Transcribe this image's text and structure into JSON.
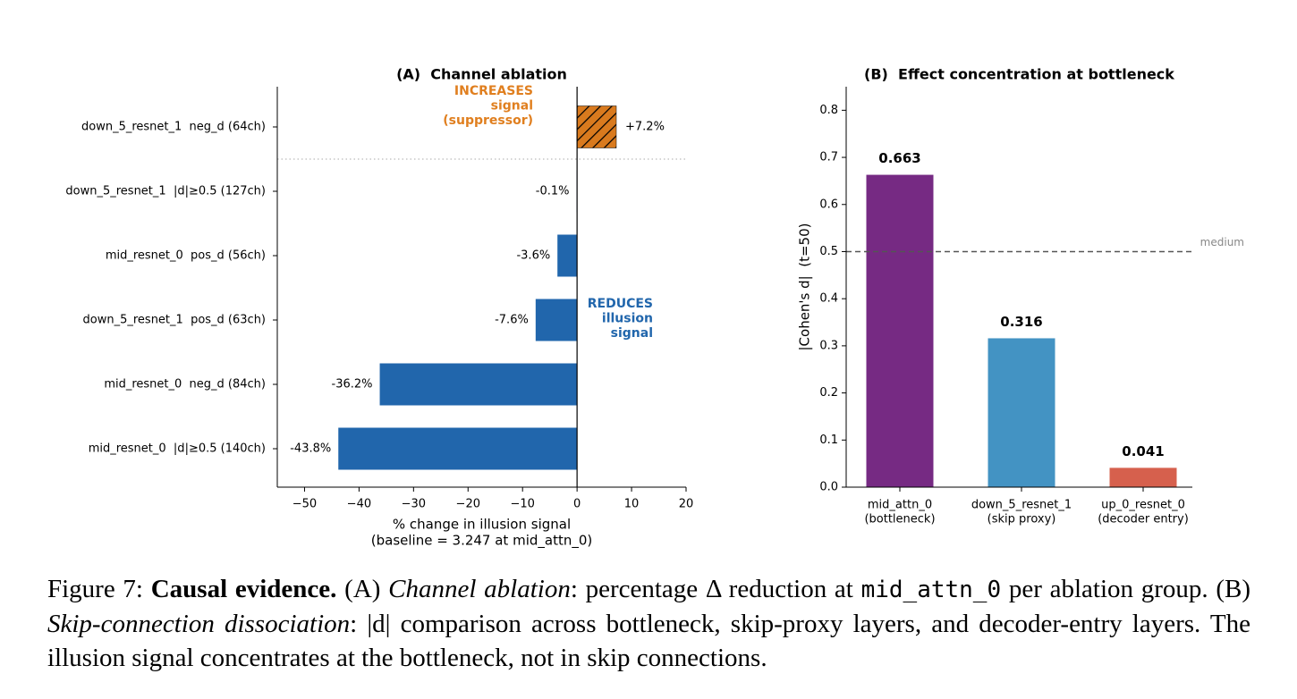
{
  "chart_data": [
    {
      "type": "hbar",
      "title": "(A)  Channel ablation",
      "categories": [
        "down_5_resnet_1  neg_d (64ch)",
        "down_5_resnet_1  |d|≥0.5 (127ch)",
        "mid_resnet_0  pos_d (56ch)",
        "down_5_resnet_1  pos_d (63ch)",
        "mid_resnet_0  neg_d (84ch)",
        "mid_resnet_0  |d|≥0.5 (140ch)"
      ],
      "values": [
        7.2,
        -0.1,
        -3.6,
        -7.6,
        -36.2,
        -43.8
      ],
      "value_labels": [
        "+7.2%",
        "-0.1%",
        "-3.6%",
        "-7.6%",
        "-36.2%",
        "-43.8%"
      ],
      "colors": [
        "#d97a1e",
        "#2166ac",
        "#2166ac",
        "#2166ac",
        "#2166ac",
        "#2166ac"
      ],
      "hatch": [
        true,
        false,
        false,
        false,
        false,
        false
      ],
      "xlim": [
        -55,
        20
      ],
      "xticks": [
        {
          "value": -50,
          "label": "−50"
        },
        {
          "value": -40,
          "label": "−40"
        },
        {
          "value": -30,
          "label": "−30"
        },
        {
          "value": -20,
          "label": "−20"
        },
        {
          "value": -10,
          "label": "−10"
        },
        0,
        10,
        20
      ],
      "xlabel": "% change in illusion signal",
      "xlabel_note": "(baseline = 3.247 at mid_attn_0)",
      "annotations": [
        {
          "lines": [
            "INCREASES",
            "signal",
            "(suppressor)"
          ],
          "color": "#e07f1f"
        },
        {
          "lines": [
            "REDUCES",
            "illusion",
            "signal"
          ],
          "color": "#2166ac"
        }
      ]
    },
    {
      "type": "bar",
      "title": "(B)  Effect concentration at bottleneck",
      "categories": [
        "mid_attn_0",
        "down_5_resnet_1",
        "up_0_resnet_0"
      ],
      "category_notes": [
        "(bottleneck)",
        "(skip proxy)",
        "(decoder entry)"
      ],
      "values": [
        0.663,
        0.316,
        0.041
      ],
      "colors": [
        "#762a83",
        "#4393c3",
        "#d6604d"
      ],
      "ylim": [
        0,
        0.85
      ],
      "yticks": [
        {
          "value": 0,
          "label": "0.0"
        },
        0.1,
        0.2,
        0.3,
        0.4,
        0.5,
        0.6,
        0.7,
        0.8
      ],
      "ylabel": "|Cohen's d|  (t=50)",
      "reference_line": {
        "value": 0.5,
        "label": "medium"
      }
    }
  ],
  "caption": {
    "figure": "Figure 7:",
    "bold": "Causal evidence.",
    "a": "(A)",
    "a_title": "Channel ablation",
    "a_text": ": percentage Δ reduction at",
    "a_code": "mid_attn_0",
    "b_lead": "per ablation group. (B)",
    "b_title": "Skip-connection dissociation",
    "b_text": ": |d| comparison across bottleneck, skip-proxy layers, and decoder-entry layers. The illusion signal concentrates at the bottleneck, not in skip connections."
  }
}
